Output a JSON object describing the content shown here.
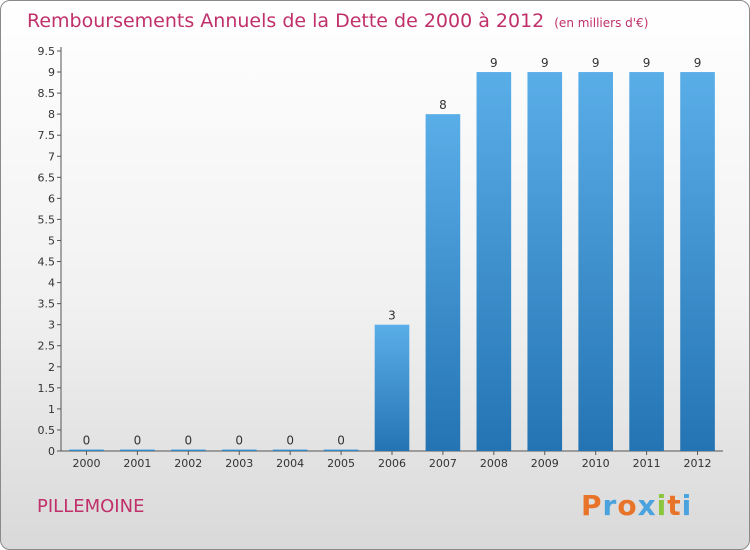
{
  "header": {
    "title": "Remboursements Annuels de la Dette de 2000 à 2012",
    "unit": "(en milliers d'€)"
  },
  "footer": {
    "place": "PILLEMOINE",
    "logo": "Proxiti"
  },
  "colors": {
    "title": "#c0306a",
    "bar_top": "#5aaee8",
    "bar_bottom": "#2474b3",
    "logo_letters": [
      "#e8742a",
      "#4aa3df",
      "#e8742a",
      "#4aa3df",
      "#8cc63f",
      "#e8742a",
      "#4aa3df"
    ]
  },
  "chart_data": {
    "type": "bar",
    "title": "Remboursements Annuels de la Dette de 2000 à 2012",
    "xlabel": "",
    "ylabel": "",
    "categories": [
      "2000",
      "2001",
      "2002",
      "2003",
      "2004",
      "2005",
      "2006",
      "2007",
      "2008",
      "2009",
      "2010",
      "2011",
      "2012"
    ],
    "values": [
      0,
      0,
      0,
      0,
      0,
      0,
      3,
      8,
      9,
      9,
      9,
      9,
      9
    ],
    "ylim": [
      0,
      9.5
    ],
    "yticks": [
      "0",
      "0.5",
      "1",
      "1.5",
      "2",
      "2.5",
      "3",
      "3.5",
      "4",
      "4.5",
      "5",
      "5.5",
      "6",
      "6.5",
      "7",
      "7.5",
      "8",
      "8.5",
      "9",
      "9.5"
    ],
    "grid": false,
    "legend": "none"
  }
}
